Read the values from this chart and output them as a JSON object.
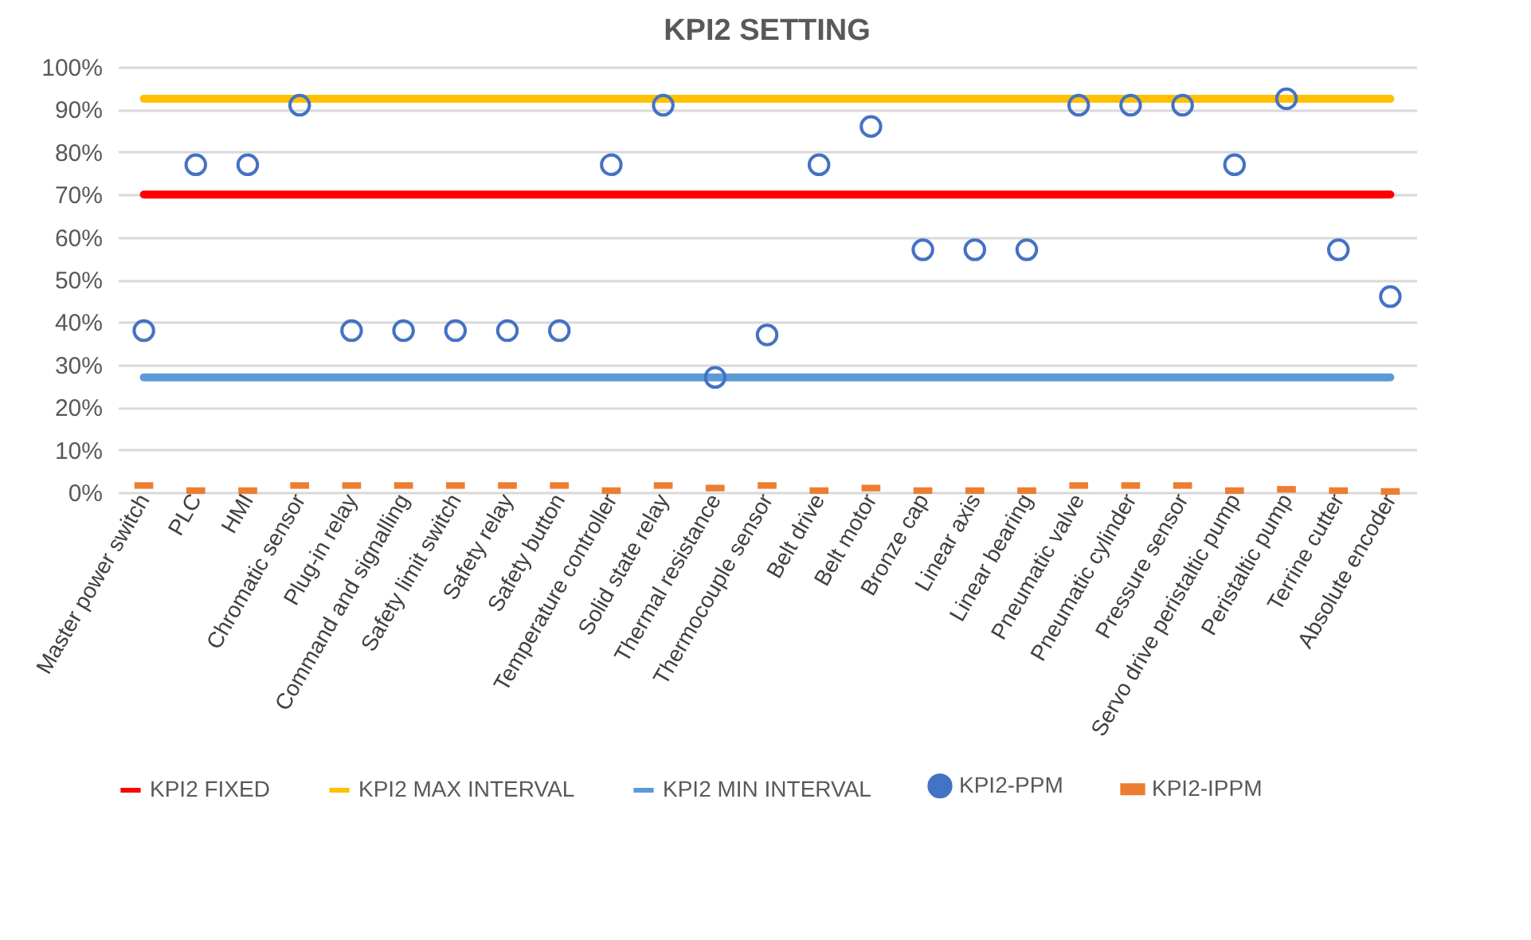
{
  "chart_data": {
    "type": "line",
    "title": "KPI2 SETTING",
    "categories": [
      "Master power switch",
      "PLC",
      "HMI",
      "Chromatic sensor",
      "Plug-in relay",
      "Command and signalling",
      "Safety limit switch",
      "Safety relay",
      "Safety button",
      "Temperature controller",
      "Solid state relay",
      "Thermal resistance",
      "Thermocouple sensor",
      "Belt drive",
      "Belt motor",
      "Bronze cap",
      "Linear axis",
      "Linear bearing",
      "Pneumatic valve",
      "Pneumatic cylinder",
      "Pressure sensor",
      "Servo drive peristaltic pump",
      "Peristaltic pump",
      "Terrine cutter",
      "Absolute encoder"
    ],
    "series": [
      {
        "name": "KPI2 FIXED",
        "color": "#ff0000",
        "line_style": "solid",
        "values": [
          70,
          70,
          70,
          70,
          70,
          70,
          70,
          70,
          70,
          70,
          70,
          70,
          70,
          70,
          70,
          70,
          70,
          70,
          70,
          70,
          70,
          70,
          70,
          70,
          70
        ]
      },
      {
        "name": "KPI2 MAX INTERVAL",
        "color": "#ffc000",
        "line_style": "solid",
        "values": [
          92.5,
          92.5,
          92.5,
          92.5,
          92.5,
          92.5,
          92.5,
          92.5,
          92.5,
          92.5,
          92.5,
          92.5,
          92.5,
          92.5,
          92.5,
          92.5,
          92.5,
          92.5,
          92.5,
          92.5,
          92.5,
          92.5,
          92.5,
          92.5,
          92.5
        ]
      },
      {
        "name": "KPI2 MIN INTERVAL",
        "color": "#5b9bd5",
        "line_style": "solid",
        "values": [
          27,
          27,
          27,
          27,
          27,
          27,
          27,
          27,
          27,
          27,
          27,
          27,
          27,
          27,
          27,
          27,
          27,
          27,
          27,
          27,
          27,
          27,
          27,
          27,
          27
        ]
      },
      {
        "name": "KPI2-PPM",
        "type": "scatter",
        "color": "#4472c4",
        "marker": "circle",
        "values": [
          38,
          77,
          77,
          91,
          38,
          38,
          38,
          38,
          38,
          77,
          91,
          27,
          37,
          77,
          86,
          57,
          57,
          57,
          91,
          91,
          91,
          77,
          92.5,
          57,
          46
        ]
      },
      {
        "name": "KPI2-IPPM",
        "type": "scatter",
        "color": "#ed7d31",
        "marker": "square",
        "values": [
          1.6,
          0.4,
          0.4,
          1.6,
          1.6,
          1.6,
          1.6,
          1.6,
          1.6,
          0.4,
          1.6,
          1.0,
          1.6,
          0.4,
          1.0,
          0.4,
          0.4,
          0.4,
          1.6,
          1.6,
          1.6,
          0.4,
          0.7,
          0.4,
          0.2
        ]
      }
    ],
    "ylim": [
      0,
      100
    ],
    "yticks": [
      {
        "value": 0,
        "label": "0%"
      },
      {
        "value": 10,
        "label": "10%"
      },
      {
        "value": 20,
        "label": "20%"
      },
      {
        "value": 30,
        "label": "30%"
      },
      {
        "value": 40,
        "label": "40%"
      },
      {
        "value": 50,
        "label": "50%"
      },
      {
        "value": 60,
        "label": "60%"
      },
      {
        "value": 70,
        "label": "70%"
      },
      {
        "value": 80,
        "label": "80%"
      },
      {
        "value": 90,
        "label": "90%"
      },
      {
        "value": 100,
        "label": "100%"
      }
    ],
    "grid": "y",
    "legend": "bottom"
  }
}
